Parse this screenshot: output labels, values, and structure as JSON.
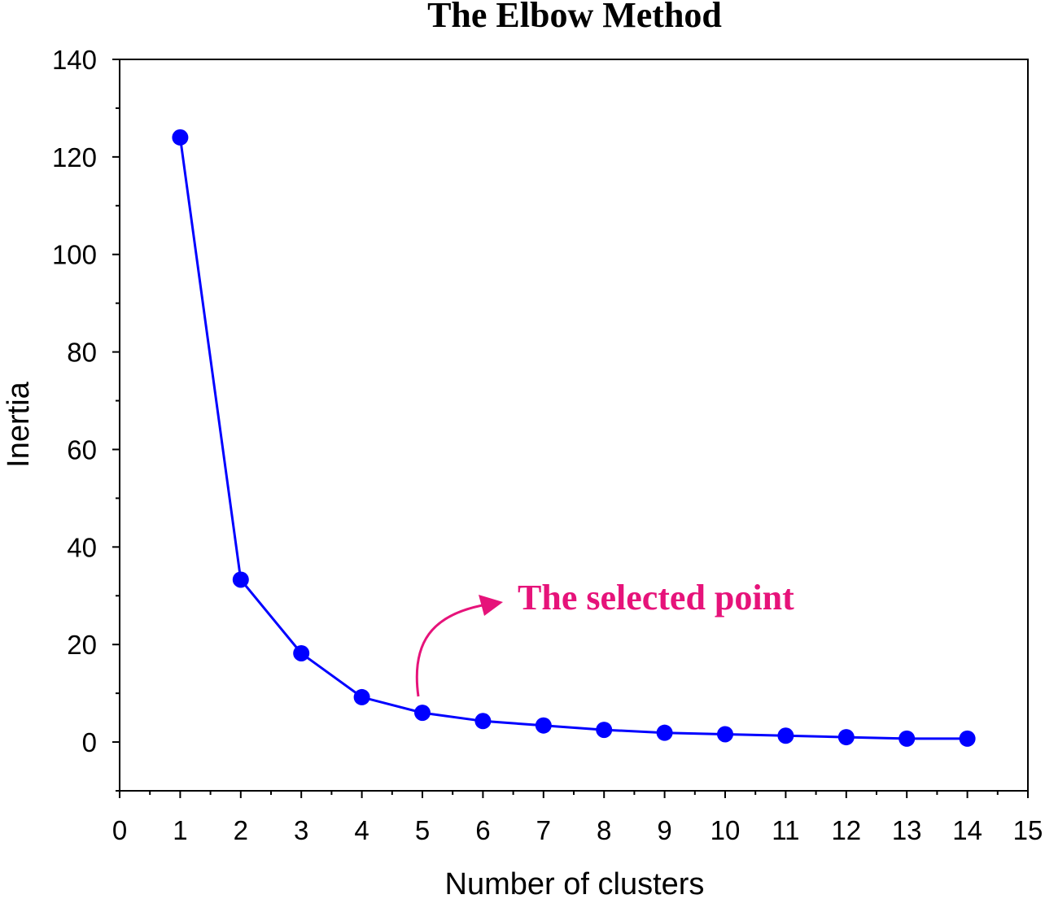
{
  "chart_data": {
    "type": "line",
    "title": "The Elbow Method",
    "xlabel": "Number of clusters",
    "ylabel": "Inertia",
    "xlim": [
      0,
      15
    ],
    "ylim": [
      -10,
      140
    ],
    "xticks": [
      0,
      1,
      2,
      3,
      4,
      5,
      6,
      7,
      8,
      9,
      10,
      11,
      12,
      13,
      14,
      15
    ],
    "yticks": [
      0,
      20,
      40,
      60,
      80,
      100,
      120,
      140
    ],
    "grid": false,
    "legend": "none",
    "series": [
      {
        "color": "#0000ff",
        "marker": "circle",
        "points": [
          {
            "x": 1,
            "y": 124.0
          },
          {
            "x": 2,
            "y": 33.3
          },
          {
            "x": 3,
            "y": 18.2
          },
          {
            "x": 4,
            "y": 9.2
          },
          {
            "x": 5,
            "y": 6.0
          },
          {
            "x": 6,
            "y": 4.3
          },
          {
            "x": 7,
            "y": 3.4
          },
          {
            "x": 8,
            "y": 2.5
          },
          {
            "x": 9,
            "y": 1.9
          },
          {
            "x": 10,
            "y": 1.6
          },
          {
            "x": 11,
            "y": 1.3
          },
          {
            "x": 12,
            "y": 1.0
          },
          {
            "x": 13,
            "y": 0.7
          },
          {
            "x": 14,
            "y": 0.7
          }
        ]
      }
    ],
    "annotation": {
      "text": "The selected point",
      "color": "#e6137a",
      "target": {
        "x": 5,
        "y": 6.0
      }
    }
  }
}
